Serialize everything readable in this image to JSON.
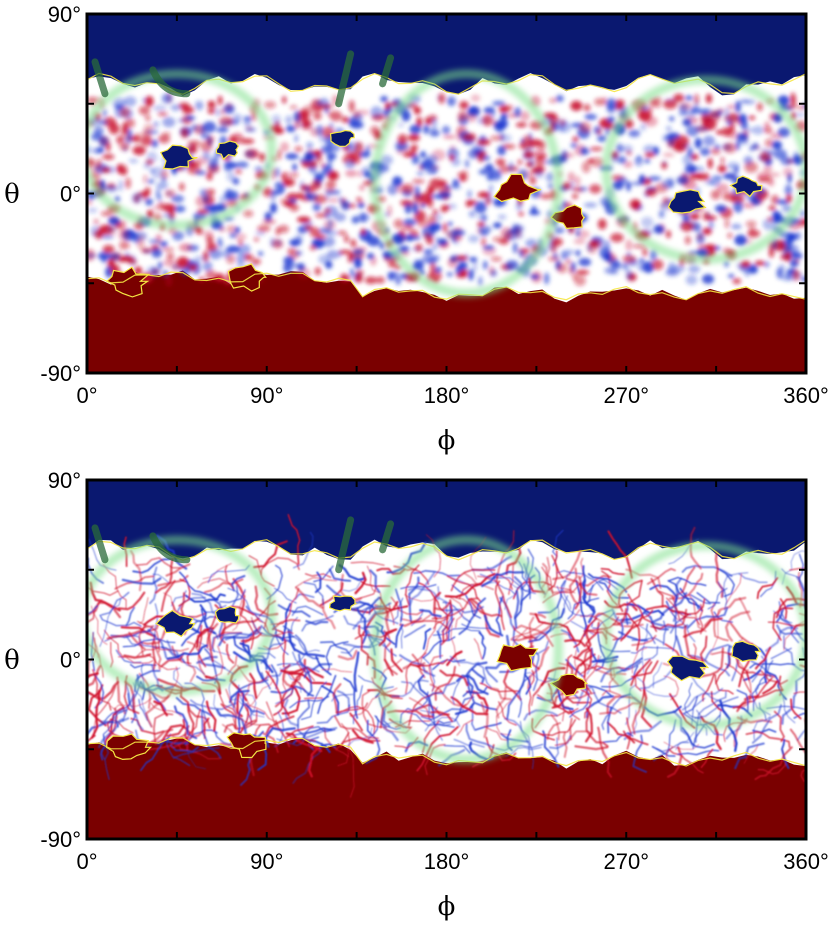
{
  "chart_data": [
    {
      "type": "heatmap",
      "title": "",
      "xlabel": "ϕ",
      "ylabel": "θ",
      "xlim": [
        0,
        360
      ],
      "ylim": [
        -90,
        90
      ],
      "x_tick_labels": [
        "0°",
        "90°",
        "180°",
        "270°",
        "360°"
      ],
      "y_tick_labels": [
        "90°",
        "0°",
        "-90°"
      ],
      "x_ticks": [
        0,
        45,
        90,
        135,
        180,
        225,
        270,
        315,
        360
      ],
      "y_ticks": [
        90,
        45,
        0,
        -45,
        -90
      ],
      "field_style": "smooth-blobs",
      "colors": {
        "north_cap": "#0a1870",
        "south_cap": "#7a0000",
        "positive": "#c8102e",
        "negative": "#1f3ad0",
        "contour": "#f5e642",
        "overlay": "#7ee08a"
      },
      "regions": {
        "north_cap_boundary_theta": 52,
        "south_cap_boundary_theta": -52
      }
    },
    {
      "type": "heatmap",
      "title": "",
      "xlabel": "ϕ",
      "ylabel": "θ",
      "xlim": [
        0,
        360
      ],
      "ylim": [
        -90,
        90
      ],
      "x_tick_labels": [
        "0°",
        "90°",
        "180°",
        "270°",
        "360°"
      ],
      "y_tick_labels": [
        "90°",
        "0°",
        "-90°"
      ],
      "x_ticks": [
        0,
        45,
        90,
        135,
        180,
        225,
        270,
        315,
        360
      ],
      "y_ticks": [
        90,
        45,
        0,
        -45,
        -90
      ],
      "field_style": "filamentary",
      "colors": {
        "north_cap": "#0a1870",
        "south_cap": "#7a0000",
        "positive": "#d0102a",
        "negative": "#1f3ad0",
        "contour": "#f5e642",
        "overlay": "#7ee08a"
      },
      "regions": {
        "north_cap_boundary_theta": 52,
        "south_cap_boundary_theta": -52
      }
    }
  ]
}
